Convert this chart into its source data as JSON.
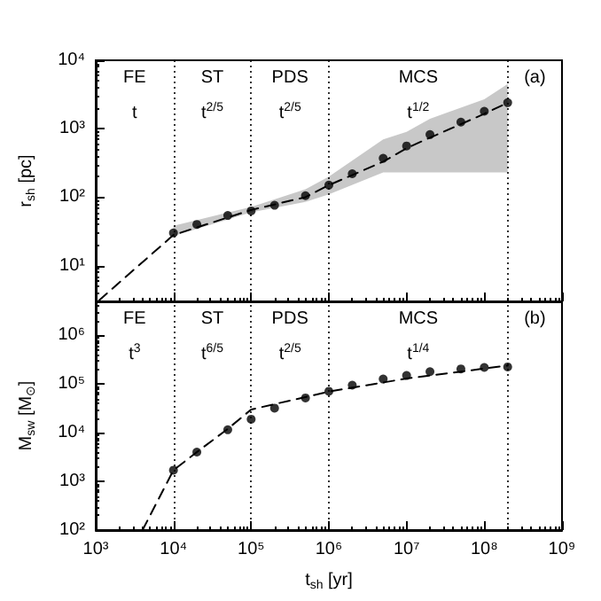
{
  "chart_data": [
    {
      "type": "line",
      "ylabel": "r$_{sh}$ [pc]",
      "log": "xy",
      "grid": false,
      "tick_labels": "y",
      "xlim": [
        1000,
        1000000000
      ],
      "xticks": [
        {
          "value": 1000,
          "label": null
        },
        {
          "value": 10000,
          "label": null
        },
        {
          "value": 100000,
          "label": null
        },
        {
          "value": 1000000,
          "label": null
        },
        {
          "value": 10000000,
          "label": null
        },
        {
          "value": 100000000,
          "label": null
        },
        {
          "value": 1000000000,
          "label": null
        }
      ],
      "ylim": [
        3,
        10000
      ],
      "yticks": [
        {
          "value": 10,
          "label": "10¹"
        },
        {
          "value": 100,
          "label": "10²"
        },
        {
          "value": 1000,
          "label": "10³"
        },
        {
          "value": 10000,
          "label": "10⁴"
        }
      ],
      "series": [
        {
          "type": "line",
          "color": "#000000",
          "line_style": "dashed",
          "marker": "none",
          "x": [
            1100,
            10000,
            100000,
            500000,
            1000000,
            5000000,
            10000000,
            20000000,
            100000000,
            200000000
          ],
          "values": [
            3.1,
            28,
            65,
            100,
            150,
            330,
            520,
            740,
            1650,
            2400
          ],
          "lower": [
            null,
            27,
            60,
            85,
            110,
            230,
            230,
            230,
            230,
            230
          ],
          "upper": [
            null,
            38,
            72,
            130,
            200,
            700,
            900,
            1400,
            2700,
            4500
          ]
        },
        {
          "type": "scatter",
          "color": "#000000",
          "marker": "circle",
          "x": [
            10000,
            20000,
            50000,
            100000,
            200000,
            500000,
            1000000,
            2000000,
            5000000,
            10000000,
            20000000,
            50000000,
            100000000,
            200000000
          ],
          "values": [
            30,
            40,
            54,
            63,
            76,
            105,
            150,
            220,
            370,
            560,
            820,
            1250,
            1800,
            2400
          ]
        }
      ],
      "ref_lines": [
        {
          "axis": "x",
          "value": 10000,
          "line_style": "dotted",
          "color": "#000000"
        },
        {
          "axis": "x",
          "value": 100000,
          "line_style": "dotted",
          "color": "#000000"
        },
        {
          "axis": "x",
          "value": 1000000,
          "line_style": "dotted",
          "color": "#000000"
        },
        {
          "axis": "x",
          "value": 200000000,
          "line_style": "dotted",
          "color": "#000000"
        }
      ],
      "annotations": [
        "FE",
        "t",
        "ST",
        "t$^{2/5}$",
        "PDS",
        "t$^{2/5}$",
        "MCS",
        "t$^{1/2}$",
        "(a)"
      ]
    },
    {
      "type": "line",
      "xlabel": "t$_{sh}$ [yr]",
      "ylabel": "M$_{sw}$ [M$_{⊙}$]",
      "log": "xy",
      "grid": false,
      "xlim": [
        1000,
        1000000000
      ],
      "xticks": [
        {
          "value": 1000,
          "label": "10³"
        },
        {
          "value": 10000,
          "label": "10⁴"
        },
        {
          "value": 100000,
          "label": "10⁵"
        },
        {
          "value": 1000000,
          "label": "10⁶"
        },
        {
          "value": 10000000,
          "label": "10⁷"
        },
        {
          "value": 100000000,
          "label": "10⁸"
        },
        {
          "value": 1000000000,
          "label": "10⁹"
        }
      ],
      "ylim": [
        100,
        5000000
      ],
      "yticks": [
        {
          "value": 100,
          "label": "10²"
        },
        {
          "value": 1000,
          "label": "10³"
        },
        {
          "value": 10000,
          "label": "10⁴"
        },
        {
          "value": 100000,
          "label": "10⁵"
        },
        {
          "value": 1000000,
          "label": "10⁶"
        }
      ],
      "series": [
        {
          "type": "line",
          "color": "#000000",
          "line_style": "dashed",
          "marker": "none",
          "x": [
            4000,
            10000,
            20000,
            50000,
            100000,
            1000000,
            10000000,
            200000000
          ],
          "values": [
            100,
            1700,
            4000,
            12000,
            30000,
            70000,
            130000,
            240000
          ]
        },
        {
          "type": "scatter",
          "color": "#000000",
          "marker": "circle",
          "x": [
            10000,
            20000,
            50000,
            100000,
            200000,
            500000,
            1000000,
            2000000,
            5000000,
            10000000,
            20000000,
            50000000,
            100000000,
            200000000
          ],
          "values": [
            1700,
            4000,
            11500,
            19000,
            32000,
            52000,
            71000,
            95000,
            127000,
            150000,
            180000,
            205000,
            220000,
            225000
          ]
        }
      ],
      "ref_lines": [
        {
          "axis": "x",
          "value": 10000,
          "line_style": "dotted",
          "color": "#000000"
        },
        {
          "axis": "x",
          "value": 100000,
          "line_style": "dotted",
          "color": "#000000"
        },
        {
          "axis": "x",
          "value": 1000000,
          "line_style": "dotted",
          "color": "#000000"
        },
        {
          "axis": "x",
          "value": 200000000,
          "line_style": "dotted",
          "color": "#000000"
        }
      ],
      "annotations": [
        "FE",
        "t$^{3}$",
        "ST",
        "t$^{6/5}$",
        "PDS",
        "t$^{2/5}$",
        "MCS",
        "t$^{1/4}$",
        "(b)"
      ]
    }
  ]
}
